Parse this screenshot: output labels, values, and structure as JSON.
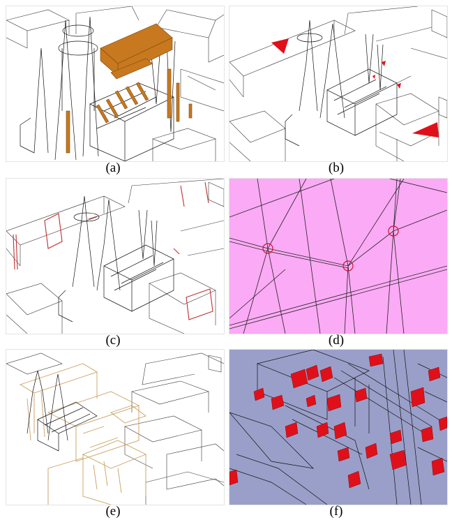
{
  "figure": {
    "panels": [
      {
        "id": "a",
        "caption": "(a)"
      },
      {
        "id": "b",
        "caption": "(b)"
      },
      {
        "id": "c",
        "caption": "(c)"
      },
      {
        "id": "d",
        "caption": "(d)"
      },
      {
        "id": "e",
        "caption": "(e)"
      },
      {
        "id": "f",
        "caption": "(f)"
      }
    ],
    "colors": {
      "wire": "#222222",
      "highlight_orange": "#c8781e",
      "highlight_red": "#e0101a",
      "edge_red": "#c03030",
      "pink_background": "#fbaaf5",
      "blue_background": "#9a9fc9",
      "tan_edges": "#c8a060"
    }
  }
}
